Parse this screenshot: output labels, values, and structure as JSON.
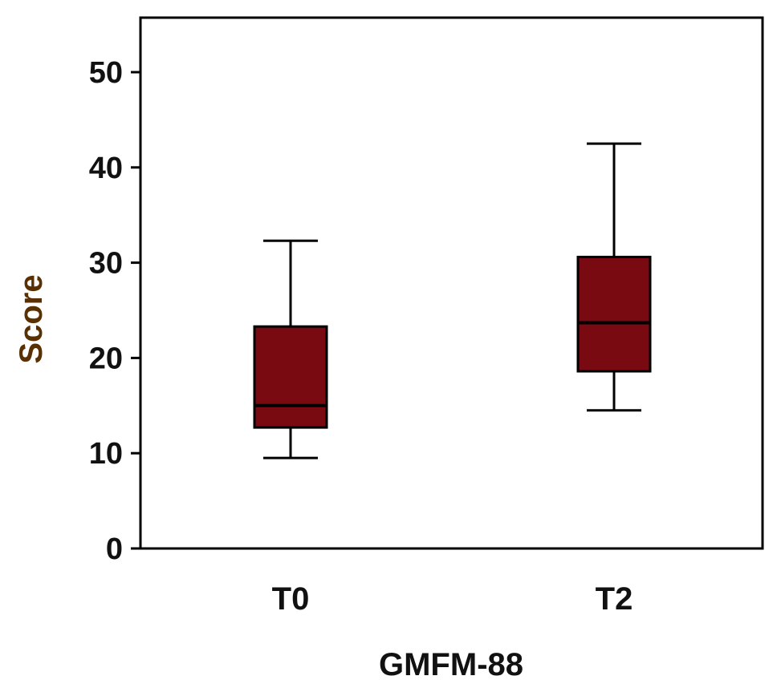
{
  "chart_data": {
    "type": "boxplot",
    "title": "",
    "xlabel": "GMFM-88",
    "ylabel": "Score",
    "ylim": [
      0,
      56
    ],
    "yticks": [
      0,
      10,
      20,
      30,
      40,
      50
    ],
    "categories": [
      "T0",
      "T2"
    ],
    "boxes": [
      {
        "category": "T0",
        "whisker_low": 9.5,
        "q1": 12.7,
        "median": 15.0,
        "q3": 23.3,
        "whisker_high": 32.3
      },
      {
        "category": "T2",
        "whisker_low": 14.5,
        "q1": 18.6,
        "median": 23.7,
        "q3": 30.6,
        "whisker_high": 42.5
      }
    ],
    "box_color": "#7a0a12",
    "ylabel_color": "#5a3000",
    "grid": false,
    "legend": "none"
  }
}
